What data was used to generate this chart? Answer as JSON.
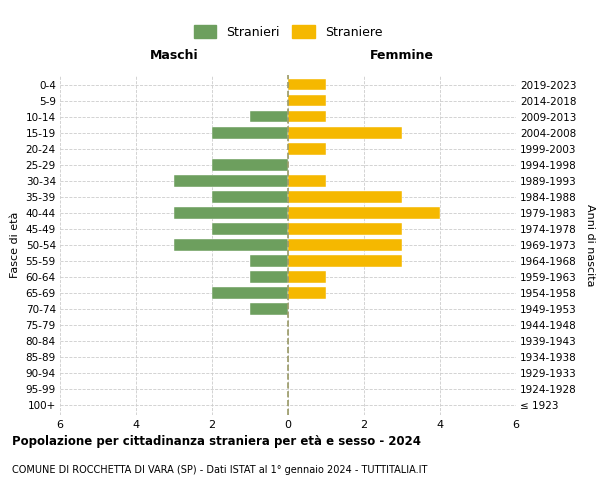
{
  "age_groups": [
    "100+",
    "95-99",
    "90-94",
    "85-89",
    "80-84",
    "75-79",
    "70-74",
    "65-69",
    "60-64",
    "55-59",
    "50-54",
    "45-49",
    "40-44",
    "35-39",
    "30-34",
    "25-29",
    "20-24",
    "15-19",
    "10-14",
    "5-9",
    "0-4"
  ],
  "birth_years": [
    "≤ 1923",
    "1924-1928",
    "1929-1933",
    "1934-1938",
    "1939-1943",
    "1944-1948",
    "1949-1953",
    "1954-1958",
    "1959-1963",
    "1964-1968",
    "1969-1973",
    "1974-1978",
    "1979-1983",
    "1984-1988",
    "1989-1993",
    "1994-1998",
    "1999-2003",
    "2004-2008",
    "2009-2013",
    "2014-2018",
    "2019-2023"
  ],
  "males": [
    0,
    0,
    0,
    0,
    0,
    0,
    1,
    2,
    1,
    1,
    3,
    2,
    3,
    2,
    3,
    2,
    0,
    2,
    1,
    0,
    0
  ],
  "females": [
    0,
    0,
    0,
    0,
    0,
    0,
    0,
    1,
    1,
    3,
    3,
    3,
    4,
    3,
    1,
    0,
    1,
    3,
    1,
    1,
    1
  ],
  "male_color": "#6d9f5e",
  "female_color": "#f5b800",
  "grid_color": "#cccccc",
  "dashed_line_color": "#999966",
  "xlim": 6,
  "title": "Popolazione per cittadinanza straniera per età e sesso - 2024",
  "subtitle": "COMUNE DI ROCCHETTA DI VARA (SP) - Dati ISTAT al 1° gennaio 2024 - TUTTITALIA.IT",
  "ylabel_left": "Fasce di età",
  "ylabel_right": "Anni di nascita",
  "legend_male": "Stranieri",
  "legend_female": "Straniere",
  "header_male": "Maschi",
  "header_female": "Femmine",
  "bar_height": 0.72,
  "background_color": "#ffffff"
}
